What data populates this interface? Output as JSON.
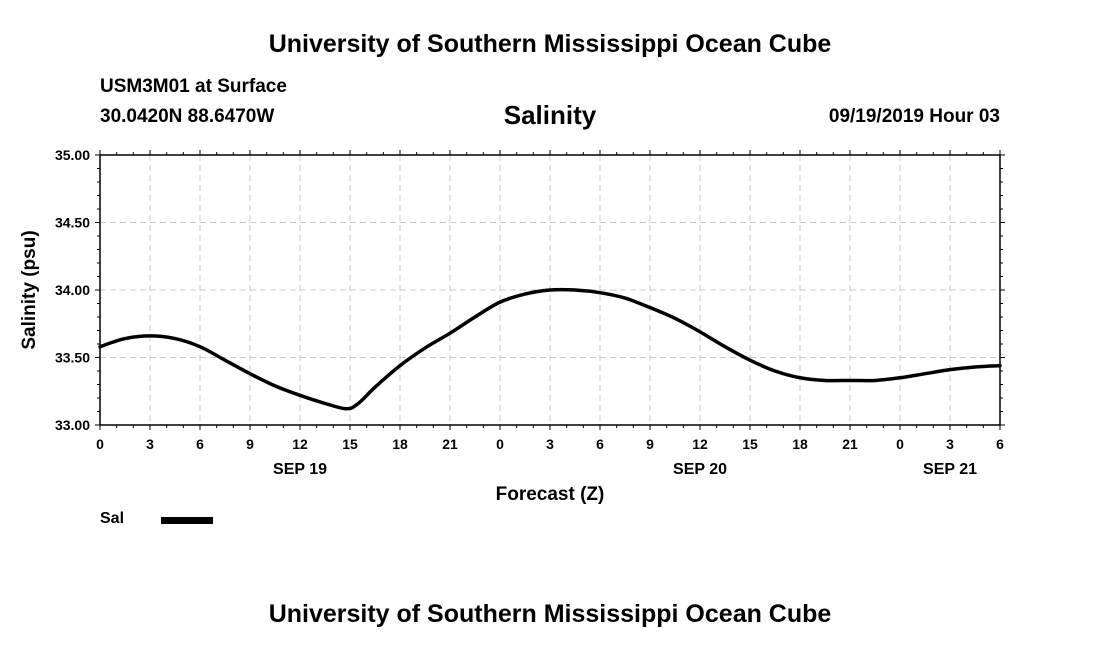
{
  "header": {
    "title_top": "University of Southern Mississippi Ocean Cube",
    "station": "USM3M01 at Surface",
    "coords": "30.0420N 88.6470W",
    "datetime": "09/19/2019 Hour 03",
    "title_bottom": "University of Southern Mississippi Ocean Cube"
  },
  "legend": {
    "label": "Sal",
    "color": "#000000"
  },
  "chart_data": {
    "type": "line",
    "title": "Salinity",
    "xlabel": "Forecast (Z)",
    "ylabel": "Salinity (psu)",
    "ylim": [
      33.0,
      35.0
    ],
    "xlim": [
      0,
      54
    ],
    "grid": true,
    "x_ticks": [
      0,
      3,
      6,
      9,
      12,
      15,
      18,
      21,
      24,
      27,
      30,
      33,
      36,
      39,
      42,
      45,
      48,
      51,
      54
    ],
    "x_tick_labels": [
      "0",
      "3",
      "6",
      "9",
      "12",
      "15",
      "18",
      "21",
      "0",
      "3",
      "6",
      "9",
      "12",
      "15",
      "18",
      "21",
      "0",
      "3",
      "6"
    ],
    "y_ticks": [
      33.0,
      33.5,
      34.0,
      34.5,
      35.0
    ],
    "y_tick_labels": [
      "33.00",
      "33.50",
      "34.00",
      "34.50",
      "35.00"
    ],
    "date_labels": [
      {
        "x": 12,
        "label": "SEP 19"
      },
      {
        "x": 36,
        "label": "SEP 20"
      },
      {
        "x": 51,
        "label": "SEP 21"
      }
    ],
    "series": [
      {
        "name": "Sal",
        "x": [
          0,
          1.5,
          3,
          4.5,
          6,
          7.5,
          9,
          10.5,
          12,
          13.5,
          14.8,
          15.5,
          16.5,
          18,
          19.5,
          21,
          22.5,
          24,
          25.5,
          27,
          28.5,
          30,
          31.5,
          33,
          34.5,
          36,
          37.5,
          39,
          40.5,
          42,
          43.5,
          45,
          46.5,
          48,
          49.5,
          51,
          52.5,
          54
        ],
        "values": [
          33.58,
          33.64,
          33.66,
          33.64,
          33.58,
          33.48,
          33.38,
          33.29,
          33.22,
          33.16,
          33.12,
          33.16,
          33.28,
          33.44,
          33.57,
          33.68,
          33.8,
          33.91,
          33.97,
          34.0,
          34.0,
          33.98,
          33.94,
          33.87,
          33.79,
          33.69,
          33.58,
          33.48,
          33.4,
          33.35,
          33.33,
          33.33,
          33.33,
          33.35,
          33.38,
          33.41,
          33.43,
          33.44
        ]
      }
    ]
  }
}
